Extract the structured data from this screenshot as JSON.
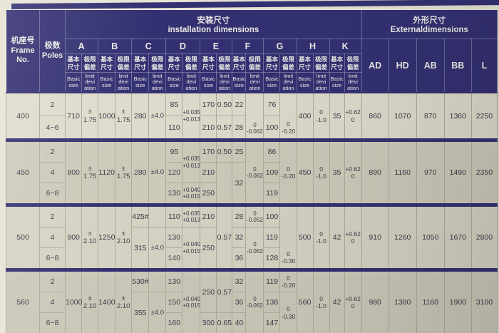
{
  "colors": {
    "navy": "#343173",
    "paper": "#e7e3d5",
    "ink": "#3c3b49",
    "grid": "#b0ab9a",
    "band400": "#dfdbcc",
    "band450": "#cecaba",
    "band500": "#d6d2c3",
    "band560": "#cbc7b8"
  },
  "header": {
    "frame_no_zh": "机座号",
    "frame_no_en": "Frame\nNo.",
    "poles_zh": "极数",
    "poles_en": "Poles",
    "installation_zh": "安装尺寸",
    "installation_en": "installation dimensions",
    "external_zh": "外形尺寸",
    "external_en": "Externaldimensions",
    "letters": [
      "A",
      "B",
      "C",
      "D",
      "E",
      "F",
      "G",
      "H",
      "K"
    ],
    "sub_basic_zh": "基本\n尺寸",
    "sub_limit_zh": "极限\n偏差",
    "sub_basic_en": "Basic\nsize",
    "sub_limit_en": "limit\ndevi\nation",
    "external_cols": [
      "AD",
      "HD",
      "AB",
      "BB",
      "L"
    ]
  },
  "body": {
    "groups": [
      {
        "frame": "400",
        "rows": [
          [
            {
              "t": "400",
              "rs": 2,
              "n": "frame-no"
            },
            {
              "t": "2",
              "n": "poles"
            },
            {
              "t": "710",
              "rs": 2
            },
            {
              "t": "±\n1.75",
              "rs": 2,
              "k": "pm"
            },
            {
              "t": "1000",
              "rs": 2
            },
            {
              "t": "±\n1.75",
              "rs": 2,
              "k": "pm"
            },
            {
              "t": "280",
              "rs": 2
            },
            {
              "t": "±4.0",
              "rs": 2,
              "k": "pm"
            },
            {
              "t": "85"
            },
            {
              "t": "+0.035\n+0.013",
              "rs": 2,
              "k": "tol"
            },
            {
              "t": "170"
            },
            {
              "t": "0.50"
            },
            {
              "t": "22"
            },
            {
              "t": "0\n-0.062",
              "rs": 2,
              "k": "tol vb"
            },
            {
              "t": "76"
            },
            {
              "t": "0\n-0.20",
              "rs": 2,
              "k": "tm vb"
            },
            {
              "t": "400",
              "rs": 2
            },
            {
              "t": "0\n-1.0",
              "rs": 2,
              "k": "tm"
            },
            {
              "t": "35",
              "rs": 2
            },
            {
              "t": "+0.62\n0",
              "rs": 2,
              "k": "tm"
            },
            {
              "t": "860",
              "rs": 2
            },
            {
              "t": "1070",
              "rs": 2
            },
            {
              "t": "870",
              "rs": 2
            },
            {
              "t": "1360",
              "rs": 2
            },
            {
              "t": "2250",
              "rs": 2
            }
          ],
          [
            {
              "t": "4~6",
              "n": "poles"
            },
            {
              "t": "110"
            },
            {
              "t": "210"
            },
            {
              "t": "0.57"
            },
            {
              "t": "28"
            },
            {
              "t": "100"
            }
          ]
        ]
      },
      {
        "frame": "450",
        "rows": [
          [
            {
              "t": "450",
              "rs": 3,
              "n": "frame-no"
            },
            {
              "t": "2",
              "n": "poles"
            },
            {
              "t": "800",
              "rs": 3
            },
            {
              "t": "±\n1.75",
              "rs": 3,
              "k": "pm"
            },
            {
              "t": "1120",
              "rs": 3
            },
            {
              "t": "±\n1.75",
              "rs": 3,
              "k": "pm"
            },
            {
              "t": "280",
              "rs": 3
            },
            {
              "t": "±4.0",
              "rs": 3,
              "k": "pm"
            },
            {
              "t": "95"
            },
            {
              "t": "+0.035\n+0.013",
              "rs": 2,
              "k": "tol"
            },
            {
              "t": "170"
            },
            {
              "t": "0.50"
            },
            {
              "t": "25"
            },
            {
              "t": "0\n-0.062",
              "rs": 3,
              "k": "tol"
            },
            {
              "t": "86"
            },
            {
              "t": "0\n-0.20",
              "rs": 3,
              "k": "tm"
            },
            {
              "t": "450",
              "rs": 3
            },
            {
              "t": "0\n-1.0",
              "rs": 3,
              "k": "tm"
            },
            {
              "t": "35",
              "rs": 3
            },
            {
              "t": "+0.62\n0",
              "rs": 3,
              "k": "tm"
            },
            {
              "t": "890",
              "rs": 3
            },
            {
              "t": "1160",
              "rs": 3
            },
            {
              "t": "970",
              "rs": 3
            },
            {
              "t": "1490",
              "rs": 3
            },
            {
              "t": "2350",
              "rs": 3
            }
          ],
          [
            {
              "t": "4",
              "n": "poles"
            },
            {
              "t": "120"
            },
            {
              "t": "210"
            },
            {
              "t": "",
              "rs": 2
            },
            {
              "t": "32",
              "rs": 2
            },
            {
              "t": "109"
            }
          ],
          [
            {
              "t": "6~8",
              "n": "poles"
            },
            {
              "t": "130"
            },
            {
              "t": "+0.040\n+0.015",
              "k": "tol"
            },
            {
              "t": "250"
            },
            {
              "t": "119"
            }
          ]
        ]
      },
      {
        "frame": "500",
        "rows": [
          [
            {
              "t": "500",
              "rs": 3,
              "n": "frame-no"
            },
            {
              "t": "2",
              "n": "poles"
            },
            {
              "t": "900",
              "rs": 3
            },
            {
              "t": "±\n2.10",
              "rs": 3,
              "k": "pm"
            },
            {
              "t": "1250",
              "rs": 3
            },
            {
              "t": "±\n2.10",
              "rs": 3,
              "k": "pm"
            },
            {
              "t": "425#"
            },
            {
              "t": ""
            },
            {
              "t": "110"
            },
            {
              "t": "+0.035\n+0.013",
              "k": "tol"
            },
            {
              "t": "210"
            },
            {
              "t": "0.57",
              "rs": 3
            },
            {
              "t": "28"
            },
            {
              "t": "0\n-0.052",
              "k": "tol"
            },
            {
              "t": "100"
            },
            {
              "t": "0\n-0.30",
              "rs": 3,
              "k": "tm vb"
            },
            {
              "t": "500",
              "rs": 3
            },
            {
              "t": "0\n-1.0",
              "rs": 3,
              "k": "tm"
            },
            {
              "t": "42",
              "rs": 3
            },
            {
              "t": "+0.62\n0",
              "rs": 3,
              "k": "tm"
            },
            {
              "t": "910",
              "rs": 3
            },
            {
              "t": "1260",
              "rs": 3
            },
            {
              "t": "1050",
              "rs": 3
            },
            {
              "t": "1670",
              "rs": 3
            },
            {
              "t": "2800",
              "rs": 3
            }
          ],
          [
            {
              "t": "4",
              "n": "poles"
            },
            {
              "t": "315",
              "rs": 2
            },
            {
              "t": "±4.0",
              "rs": 2,
              "k": "pm"
            },
            {
              "t": "130"
            },
            {
              "t": "+0.040\n+0.015",
              "rs": 2,
              "k": "tol"
            },
            {
              "t": "250",
              "rs": 2
            },
            {
              "t": "32"
            },
            {
              "t": "0\n-0.062",
              "rs": 2,
              "k": "tol"
            },
            {
              "t": "119"
            }
          ],
          [
            {
              "t": "6~8",
              "n": "poles"
            },
            {
              "t": "140"
            },
            {
              "t": "36"
            },
            {
              "t": "128"
            }
          ]
        ]
      },
      {
        "frame": "560",
        "rows": [
          [
            {
              "t": "560",
              "rs": 3,
              "n": "frame-no"
            },
            {
              "t": "2",
              "n": "poles"
            },
            {
              "t": "1000",
              "rs": 3
            },
            {
              "t": "±\n2.10",
              "rs": 3,
              "k": "pm"
            },
            {
              "t": "1400",
              "rs": 3
            },
            {
              "t": "±\n2.10",
              "rs": 3,
              "k": "pm"
            },
            {
              "t": "530#"
            },
            {
              "t": ""
            },
            {
              "t": "130"
            },
            {
              "t": "+0.040\n+0.015",
              "rs": 3,
              "k": "tol"
            },
            {
              "t": "250",
              "rs": 2
            },
            {
              "t": "0.57",
              "rs": 2
            },
            {
              "t": "32"
            },
            {
              "t": "0\n-0.062",
              "rs": 3,
              "k": "tol"
            },
            {
              "t": "119"
            },
            {
              "t": "0\n-0.20",
              "k": "tm"
            },
            {
              "t": "560",
              "rs": 3
            },
            {
              "t": "0\n-1.0",
              "rs": 3,
              "k": "tm"
            },
            {
              "t": "42",
              "rs": 3
            },
            {
              "t": "+0.62\n0",
              "rs": 3,
              "k": "tm"
            },
            {
              "t": "980",
              "rs": 3
            },
            {
              "t": "1380",
              "rs": 3
            },
            {
              "t": "1160",
              "rs": 3
            },
            {
              "t": "1900",
              "rs": 3
            },
            {
              "t": "3100",
              "rs": 3
            }
          ],
          [
            {
              "t": "4",
              "n": "poles"
            },
            {
              "t": "355",
              "rs": 2
            },
            {
              "t": "±4.0",
              "rs": 2,
              "k": "pm"
            },
            {
              "t": "150"
            },
            {
              "t": "36"
            },
            {
              "t": "138"
            },
            {
              "t": "0\n-0.30",
              "rs": 2,
              "k": "tm"
            }
          ],
          [
            {
              "t": "6~8",
              "n": "poles"
            },
            {
              "t": "160"
            },
            {
              "t": "300"
            },
            {
              "t": "0.65"
            },
            {
              "t": "40"
            },
            {
              "t": "147"
            }
          ]
        ]
      }
    ]
  }
}
